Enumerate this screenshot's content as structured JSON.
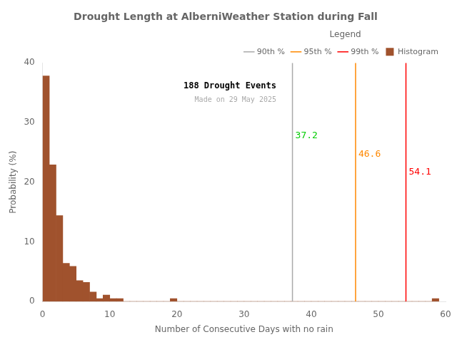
{
  "chart_data": {
    "type": "histogram",
    "title": "Drought Length at AlberniWeather Station during Fall",
    "x_label": "Number of Consecutive Days with no rain",
    "y_label": "Probability (%)",
    "name": "Histogram",
    "color": "#a0522d",
    "bins": [
      0,
      1,
      2,
      3,
      4,
      5,
      6,
      7,
      8,
      9,
      10,
      11,
      12,
      13,
      14,
      15,
      16,
      17,
      18,
      19,
      20,
      21,
      22,
      23,
      24,
      25,
      26,
      27,
      28,
      29,
      30,
      31,
      32,
      33,
      34,
      35,
      36,
      37,
      38,
      39,
      40,
      41,
      42,
      43,
      44,
      45,
      46,
      47,
      48,
      49,
      50,
      51,
      52,
      53,
      54,
      55,
      56,
      57,
      58,
      59
    ],
    "values": [
      37.8,
      22.9,
      14.4,
      6.4,
      5.9,
      3.5,
      3.2,
      1.6,
      0.5,
      1.1,
      0.5,
      0.5,
      0.0,
      0.0,
      0.0,
      0.0,
      0.0,
      0.0,
      0.0,
      0.5,
      0.0,
      0.0,
      0.0,
      0.0,
      0.0,
      0.0,
      0.0,
      0.0,
      0.0,
      0.0,
      0.0,
      0.0,
      0.0,
      0.0,
      0.0,
      0.0,
      0.0,
      0.0,
      0.0,
      0.0,
      0.0,
      0.0,
      0.0,
      0.0,
      0.0,
      0.0,
      0.0,
      0.0,
      0.0,
      0.0,
      0.0,
      0.0,
      0.0,
      0.0,
      0.0,
      0.0,
      0.0,
      0.0,
      0.5
    ],
    "xlim": [
      0,
      60
    ],
    "ylim": [
      0,
      40
    ],
    "xticks": [
      0,
      10,
      20,
      30,
      40,
      50,
      60
    ],
    "yticks": [
      0,
      10,
      20,
      30,
      40
    ],
    "grid": false,
    "legend": "upper right",
    "legend_title": "Legend",
    "lines": [
      {
        "name": "90th %",
        "x": 37.2,
        "color": "#aaaaaa",
        "label_y": 28.5,
        "label_color": "#00cc00"
      },
      {
        "name": "95th %",
        "x": 46.6,
        "color": "#ff8800",
        "label_y": 25.5,
        "label_color": "#ff8800"
      },
      {
        "name": "99th %",
        "x": 54.1,
        "color": "#ff0000",
        "label_y": 22.5,
        "label_color": "#ff0000"
      }
    ],
    "annotations": [
      {
        "text": "188 Drought Events"
      },
      {
        "text": "Made on 29 May 2025",
        "color": "#aaaaaa"
      }
    ]
  }
}
